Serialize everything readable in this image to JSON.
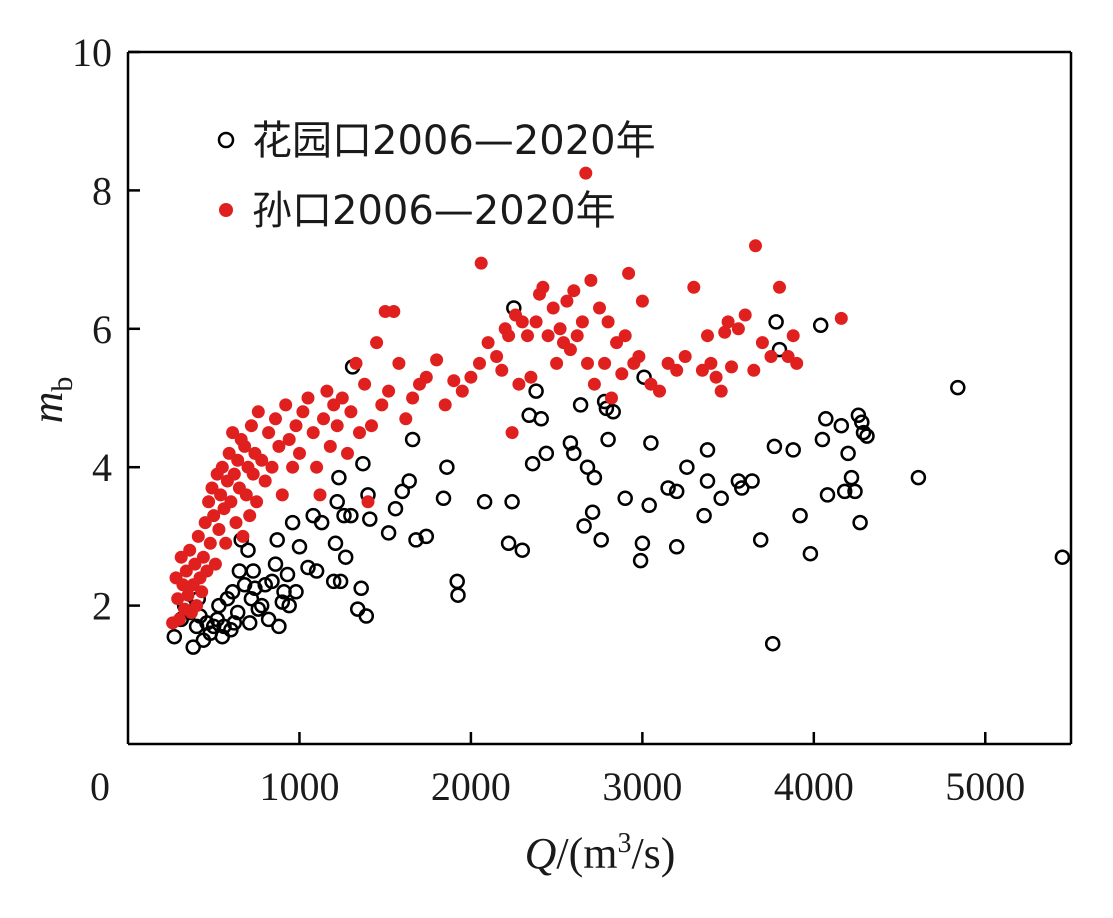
{
  "chart_data": {
    "type": "scatter",
    "xlabel": {
      "symbol": "Q",
      "unit_prefix": "/(m",
      "unit_sup": "3",
      "unit_suffix": "/s)"
    },
    "ylabel": {
      "symbol": "m",
      "subscript": "b"
    },
    "xlim": [
      0,
      5500
    ],
    "ylim": [
      0,
      10
    ],
    "xticks": [
      1000,
      2000,
      3000,
      4000,
      5000
    ],
    "yticks": [
      2,
      4,
      6,
      8,
      10
    ],
    "origin_label": "0",
    "grid": false,
    "legend_placement": "top-left",
    "series": [
      {
        "name": "花园口2006—2020年",
        "marker": "open-circle",
        "color": "#000000",
        "points": [
          [
            270,
            1.55
          ],
          [
            310,
            1.8
          ],
          [
            330,
            2.0
          ],
          [
            360,
            1.9
          ],
          [
            380,
            1.4
          ],
          [
            400,
            1.7
          ],
          [
            410,
            2.1
          ],
          [
            420,
            1.85
          ],
          [
            440,
            1.5
          ],
          [
            460,
            1.75
          ],
          [
            480,
            1.6
          ],
          [
            500,
            1.7
          ],
          [
            520,
            1.8
          ],
          [
            530,
            2.0
          ],
          [
            550,
            1.55
          ],
          [
            560,
            1.7
          ],
          [
            580,
            2.1
          ],
          [
            600,
            1.65
          ],
          [
            610,
            2.2
          ],
          [
            620,
            1.75
          ],
          [
            640,
            1.9
          ],
          [
            650,
            2.5
          ],
          [
            660,
            2.95
          ],
          [
            680,
            2.3
          ],
          [
            700,
            2.8
          ],
          [
            710,
            1.75
          ],
          [
            720,
            2.1
          ],
          [
            730,
            2.5
          ],
          [
            740,
            2.25
          ],
          [
            760,
            1.95
          ],
          [
            780,
            2.0
          ],
          [
            800,
            2.3
          ],
          [
            820,
            1.8
          ],
          [
            840,
            2.35
          ],
          [
            860,
            2.6
          ],
          [
            870,
            2.95
          ],
          [
            880,
            1.7
          ],
          [
            900,
            2.05
          ],
          [
            910,
            2.2
          ],
          [
            930,
            2.45
          ],
          [
            940,
            2.0
          ],
          [
            960,
            3.2
          ],
          [
            980,
            2.2
          ],
          [
            1000,
            2.85
          ],
          [
            1050,
            2.55
          ],
          [
            1080,
            3.3
          ],
          [
            1100,
            2.5
          ],
          [
            1130,
            3.2
          ],
          [
            1200,
            2.35
          ],
          [
            1210,
            2.9
          ],
          [
            1220,
            3.5
          ],
          [
            1230,
            3.85
          ],
          [
            1240,
            2.35
          ],
          [
            1260,
            3.3
          ],
          [
            1270,
            2.7
          ],
          [
            1300,
            3.3
          ],
          [
            1310,
            5.45
          ],
          [
            1340,
            1.95
          ],
          [
            1360,
            2.25
          ],
          [
            1370,
            4.05
          ],
          [
            1390,
            1.85
          ],
          [
            1400,
            3.6
          ],
          [
            1410,
            3.25
          ],
          [
            1520,
            3.05
          ],
          [
            1560,
            3.4
          ],
          [
            1600,
            3.65
          ],
          [
            1640,
            3.8
          ],
          [
            1660,
            4.4
          ],
          [
            1680,
            2.95
          ],
          [
            1740,
            3.0
          ],
          [
            1840,
            3.55
          ],
          [
            1860,
            4.0
          ],
          [
            1920,
            2.35
          ],
          [
            1925,
            2.15
          ],
          [
            2080,
            3.5
          ],
          [
            2220,
            2.9
          ],
          [
            2240,
            3.5
          ],
          [
            2250,
            6.3
          ],
          [
            2300,
            2.8
          ],
          [
            2340,
            4.75
          ],
          [
            2360,
            4.05
          ],
          [
            2380,
            5.1
          ],
          [
            2410,
            4.7
          ],
          [
            2440,
            4.2
          ],
          [
            2580,
            4.35
          ],
          [
            2600,
            4.2
          ],
          [
            2640,
            4.9
          ],
          [
            2660,
            3.15
          ],
          [
            2680,
            4.0
          ],
          [
            2710,
            3.35
          ],
          [
            2720,
            3.85
          ],
          [
            2760,
            2.95
          ],
          [
            2780,
            4.95
          ],
          [
            2790,
            4.85
          ],
          [
            2800,
            4.4
          ],
          [
            2830,
            4.8
          ],
          [
            2900,
            3.55
          ],
          [
            2990,
            2.65
          ],
          [
            3000,
            2.9
          ],
          [
            3010,
            5.3
          ],
          [
            3040,
            3.45
          ],
          [
            3050,
            4.35
          ],
          [
            3150,
            3.7
          ],
          [
            3200,
            3.65
          ],
          [
            3200,
            2.85
          ],
          [
            3260,
            4.0
          ],
          [
            3360,
            3.3
          ],
          [
            3380,
            4.25
          ],
          [
            3380,
            3.8
          ],
          [
            3460,
            3.55
          ],
          [
            3560,
            3.8
          ],
          [
            3580,
            3.7
          ],
          [
            3640,
            3.8
          ],
          [
            3690,
            2.95
          ],
          [
            3760,
            1.45
          ],
          [
            3770,
            4.3
          ],
          [
            3780,
            6.1
          ],
          [
            3800,
            5.7
          ],
          [
            3880,
            4.25
          ],
          [
            3920,
            3.3
          ],
          [
            3980,
            2.75
          ],
          [
            4040,
            6.05
          ],
          [
            4050,
            4.4
          ],
          [
            4070,
            4.7
          ],
          [
            4080,
            3.6
          ],
          [
            4160,
            4.6
          ],
          [
            4180,
            3.65
          ],
          [
            4200,
            4.2
          ],
          [
            4220,
            3.85
          ],
          [
            4240,
            3.65
          ],
          [
            4260,
            4.75
          ],
          [
            4270,
            3.2
          ],
          [
            4280,
            4.65
          ],
          [
            4290,
            4.5
          ],
          [
            4310,
            4.45
          ],
          [
            4610,
            3.85
          ],
          [
            4840,
            5.15
          ],
          [
            5450,
            2.7
          ]
        ]
      },
      {
        "name": "孙口2006—2020年",
        "marker": "filled-circle",
        "color": "#e0201e",
        "points": [
          [
            260,
            1.75
          ],
          [
            280,
            2.4
          ],
          [
            290,
            2.1
          ],
          [
            300,
            1.8
          ],
          [
            310,
            2.7
          ],
          [
            320,
            2.3
          ],
          [
            330,
            1.95
          ],
          [
            340,
            2.5
          ],
          [
            350,
            2.15
          ],
          [
            360,
            2.8
          ],
          [
            370,
            1.9
          ],
          [
            380,
            2.3
          ],
          [
            390,
            2.6
          ],
          [
            400,
            2.0
          ],
          [
            410,
            3.0
          ],
          [
            420,
            2.4
          ],
          [
            430,
            2.2
          ],
          [
            440,
            2.7
          ],
          [
            450,
            3.2
          ],
          [
            460,
            2.5
          ],
          [
            470,
            3.5
          ],
          [
            480,
            2.9
          ],
          [
            490,
            3.7
          ],
          [
            500,
            3.3
          ],
          [
            510,
            2.6
          ],
          [
            520,
            3.9
          ],
          [
            530,
            3.1
          ],
          [
            540,
            3.6
          ],
          [
            550,
            4.0
          ],
          [
            560,
            3.4
          ],
          [
            570,
            2.9
          ],
          [
            580,
            3.8
          ],
          [
            590,
            4.2
          ],
          [
            600,
            3.5
          ],
          [
            610,
            4.5
          ],
          [
            620,
            3.9
          ],
          [
            630,
            3.2
          ],
          [
            640,
            4.1
          ],
          [
            650,
            3.7
          ],
          [
            660,
            4.4
          ],
          [
            670,
            3.0
          ],
          [
            680,
            4.3
          ],
          [
            690,
            3.6
          ],
          [
            700,
            4.0
          ],
          [
            710,
            3.3
          ],
          [
            720,
            4.6
          ],
          [
            730,
            3.9
          ],
          [
            740,
            4.2
          ],
          [
            750,
            3.5
          ],
          [
            760,
            4.8
          ],
          [
            780,
            4.1
          ],
          [
            800,
            3.8
          ],
          [
            820,
            4.5
          ],
          [
            840,
            4.0
          ],
          [
            860,
            4.7
          ],
          [
            880,
            4.3
          ],
          [
            900,
            3.6
          ],
          [
            920,
            4.9
          ],
          [
            940,
            4.4
          ],
          [
            960,
            4.0
          ],
          [
            980,
            4.6
          ],
          [
            1000,
            4.2
          ],
          [
            1020,
            4.8
          ],
          [
            1050,
            5.0
          ],
          [
            1080,
            4.5
          ],
          [
            1100,
            4.0
          ],
          [
            1120,
            3.6
          ],
          [
            1140,
            4.7
          ],
          [
            1160,
            5.1
          ],
          [
            1180,
            4.3
          ],
          [
            1200,
            4.9
          ],
          [
            1220,
            4.6
          ],
          [
            1250,
            5.0
          ],
          [
            1280,
            4.2
          ],
          [
            1300,
            4.8
          ],
          [
            1330,
            5.5
          ],
          [
            1350,
            4.5
          ],
          [
            1380,
            5.2
          ],
          [
            1400,
            3.5
          ],
          [
            1420,
            4.6
          ],
          [
            1450,
            5.8
          ],
          [
            1480,
            4.9
          ],
          [
            1500,
            6.25
          ],
          [
            1520,
            5.1
          ],
          [
            1550,
            6.25
          ],
          [
            1580,
            5.5
          ],
          [
            1620,
            4.7
          ],
          [
            1660,
            5.0
          ],
          [
            1700,
            5.2
          ],
          [
            1740,
            5.3
          ],
          [
            1800,
            5.55
          ],
          [
            1850,
            4.9
          ],
          [
            1900,
            5.25
          ],
          [
            1950,
            5.1
          ],
          [
            2000,
            5.3
          ],
          [
            2050,
            5.5
          ],
          [
            2060,
            6.95
          ],
          [
            2100,
            5.8
          ],
          [
            2150,
            5.6
          ],
          [
            2180,
            5.4
          ],
          [
            2200,
            6.0
          ],
          [
            2220,
            5.9
          ],
          [
            2240,
            4.5
          ],
          [
            2260,
            6.2
          ],
          [
            2280,
            5.2
          ],
          [
            2300,
            6.1
          ],
          [
            2330,
            5.9
          ],
          [
            2350,
            5.3
          ],
          [
            2380,
            6.1
          ],
          [
            2400,
            6.5
          ],
          [
            2420,
            6.6
          ],
          [
            2450,
            5.9
          ],
          [
            2480,
            6.3
          ],
          [
            2500,
            5.5
          ],
          [
            2520,
            6.0
          ],
          [
            2540,
            5.8
          ],
          [
            2560,
            6.4
          ],
          [
            2580,
            5.7
          ],
          [
            2600,
            6.55
          ],
          [
            2620,
            5.9
          ],
          [
            2650,
            6.1
          ],
          [
            2670,
            8.25
          ],
          [
            2680,
            5.5
          ],
          [
            2700,
            6.7
          ],
          [
            2720,
            5.2
          ],
          [
            2750,
            6.3
          ],
          [
            2780,
            5.5
          ],
          [
            2800,
            6.1
          ],
          [
            2820,
            5.0
          ],
          [
            2850,
            5.8
          ],
          [
            2880,
            5.35
          ],
          [
            2900,
            5.9
          ],
          [
            2920,
            6.8
          ],
          [
            2950,
            5.5
          ],
          [
            2980,
            5.6
          ],
          [
            3000,
            6.4
          ],
          [
            3050,
            5.2
          ],
          [
            3100,
            5.1
          ],
          [
            3150,
            5.5
          ],
          [
            3200,
            5.4
          ],
          [
            3250,
            5.6
          ],
          [
            3300,
            6.6
          ],
          [
            3350,
            5.4
          ],
          [
            3380,
            5.9
          ],
          [
            3400,
            5.5
          ],
          [
            3430,
            5.3
          ],
          [
            3460,
            5.1
          ],
          [
            3480,
            5.95
          ],
          [
            3500,
            6.1
          ],
          [
            3520,
            5.45
          ],
          [
            3560,
            6.0
          ],
          [
            3600,
            6.2
          ],
          [
            3650,
            5.4
          ],
          [
            3660,
            7.2
          ],
          [
            3700,
            5.8
          ],
          [
            3750,
            5.6
          ],
          [
            3800,
            6.6
          ],
          [
            3850,
            5.6
          ],
          [
            3880,
            5.9
          ],
          [
            3900,
            5.5
          ],
          [
            4160,
            6.15
          ]
        ]
      }
    ]
  }
}
